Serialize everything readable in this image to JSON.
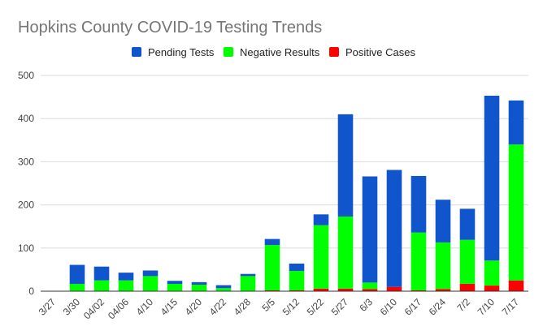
{
  "chart_data": {
    "type": "bar",
    "stacked": true,
    "title": "Hopkins County COVID-19 Testing Trends",
    "xlabel": "",
    "ylabel": "",
    "ylim": [
      0,
      500
    ],
    "yticks": [
      0,
      100,
      200,
      300,
      400,
      500
    ],
    "grid": true,
    "legend_position": "top",
    "categories": [
      "3/27",
      "3/30",
      "04/02",
      "04/06",
      "4/10",
      "4/15",
      "4/20",
      "4/22",
      "4/28",
      "5/5",
      "5/12",
      "5/22",
      "5/27",
      "6/3",
      "6/10",
      "6/17",
      "6/24",
      "7/2",
      "7/10",
      "7/17"
    ],
    "series": [
      {
        "name": "Positive Cases",
        "color": "#ff0000",
        "values": [
          0,
          0,
          0,
          0,
          0,
          0,
          0,
          0,
          0,
          2,
          2,
          6,
          6,
          5,
          10,
          2,
          5,
          17,
          13,
          25
        ]
      },
      {
        "name": "Negative Results",
        "color": "#00ff00",
        "values": [
          0,
          17,
          25,
          25,
          35,
          17,
          15,
          7,
          35,
          105,
          45,
          147,
          167,
          15,
          0,
          134,
          108,
          102,
          58,
          315
        ]
      },
      {
        "name": "Pending Tests",
        "color": "#1155cc",
        "values": [
          0,
          44,
          32,
          18,
          13,
          7,
          6,
          7,
          5,
          14,
          17,
          25,
          237,
          246,
          271,
          131,
          99,
          72,
          382,
          102
        ]
      }
    ],
    "legend_order": [
      "Pending Tests",
      "Negative Results",
      "Positive Cases"
    ]
  }
}
